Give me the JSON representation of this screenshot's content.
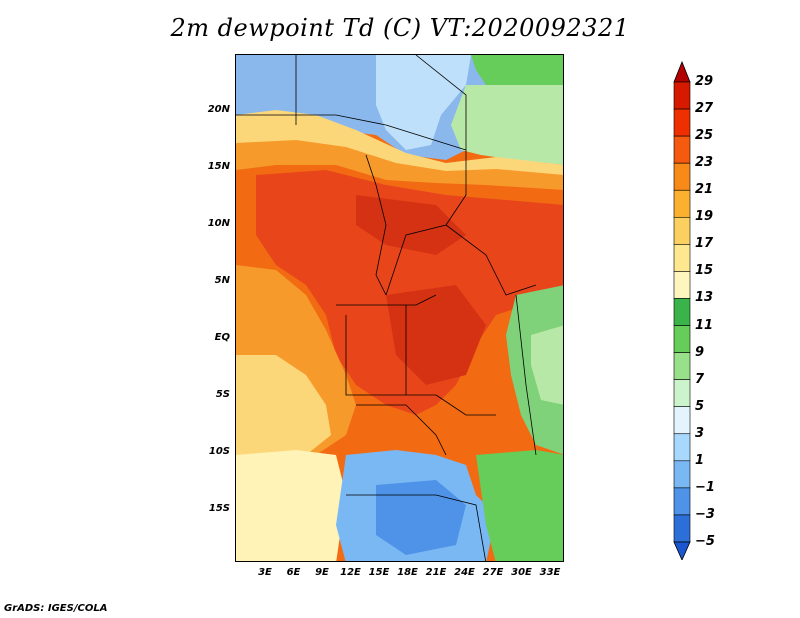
{
  "title": "2m dewpoint Td (C) VT:2020092321",
  "credit": "GrADS: IGES/COLA",
  "lat_labels": [
    "20N",
    "15N",
    "10N",
    "5N",
    "EQ",
    "5S",
    "10S",
    "15S"
  ],
  "lon_labels": [
    "3E",
    "6E",
    "9E",
    "12E",
    "15E",
    "18E",
    "21E",
    "24E",
    "27E",
    "30E",
    "33E"
  ],
  "colorbar": {
    "labels": [
      "29",
      "27",
      "25",
      "23",
      "21",
      "19",
      "17",
      "15",
      "13",
      "11",
      "9",
      "7",
      "5",
      "3",
      "1",
      "−1",
      "−3",
      "−5"
    ],
    "colors": [
      "#b30000",
      "#d61a00",
      "#ee3000",
      "#f45a10",
      "#f88a1a",
      "#fbb030",
      "#fbd060",
      "#fde890",
      "#fff6bf",
      "#39b34a",
      "#66cc5a",
      "#99e08a",
      "#ccf4cc",
      "#e3f4ff",
      "#a9d8ff",
      "#7ab8f4",
      "#4f93e8",
      "#2d6fd9",
      "#1a56d0"
    ]
  },
  "colors": {
    "dry_blue": "#8ab8ec",
    "light_blue": "#bfe0fa",
    "green": "#7fd27a",
    "pale_green": "#b8e8a8",
    "cream": "#fff3b8",
    "yellow": "#fcd77a",
    "orange": "#f79a2c",
    "deep_orange": "#f26b12",
    "red": "#e8461a",
    "dark_red": "#d43213"
  }
}
